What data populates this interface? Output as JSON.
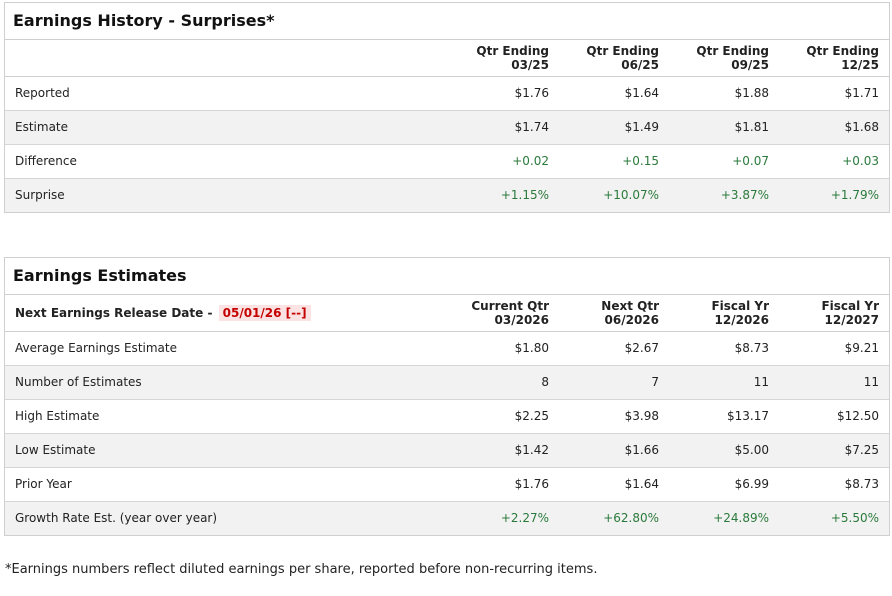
{
  "history": {
    "title": "Earnings History - Surprises*",
    "headers": [
      {
        "line1": "Qtr Ending",
        "line2": "03/25"
      },
      {
        "line1": "Qtr Ending",
        "line2": "06/25"
      },
      {
        "line1": "Qtr Ending",
        "line2": "09/25"
      },
      {
        "line1": "Qtr Ending",
        "line2": "12/25"
      }
    ],
    "rows": [
      {
        "label": "Reported",
        "values": [
          "$1.76",
          "$1.64",
          "$1.88",
          "$1.71"
        ]
      },
      {
        "label": "Estimate",
        "values": [
          "$1.74",
          "$1.49",
          "$1.81",
          "$1.68"
        ]
      },
      {
        "label": "Difference",
        "values": [
          "+0.02",
          "+0.15",
          "+0.07",
          "+0.03"
        ]
      },
      {
        "label": "Surprise",
        "values": [
          "+1.15%",
          "+10.07%",
          "+3.87%",
          "+1.79%"
        ]
      }
    ]
  },
  "estimates": {
    "title": "Earnings Estimates",
    "release_label": "Next Earnings Release Date -",
    "release_date": "05/01/26 [--]",
    "headers": [
      {
        "line1": "Current Qtr",
        "line2": "03/2026"
      },
      {
        "line1": "Next Qtr",
        "line2": "06/2026"
      },
      {
        "line1": "Fiscal Yr",
        "line2": "12/2026"
      },
      {
        "line1": "Fiscal Yr",
        "line2": "12/2027"
      }
    ],
    "rows": [
      {
        "label": "Average Earnings Estimate",
        "values": [
          "$1.80",
          "$2.67",
          "$8.73",
          "$9.21"
        ]
      },
      {
        "label": "Number of Estimates",
        "values": [
          "8",
          "7",
          "11",
          "11"
        ]
      },
      {
        "label": "High Estimate",
        "values": [
          "$2.25",
          "$3.98",
          "$13.17",
          "$12.50"
        ]
      },
      {
        "label": "Low Estimate",
        "values": [
          "$1.42",
          "$1.66",
          "$5.00",
          "$7.25"
        ]
      },
      {
        "label": "Prior Year",
        "values": [
          "$1.76",
          "$1.64",
          "$6.99",
          "$8.73"
        ]
      },
      {
        "label": "Growth Rate Est. (year over year)",
        "values": [
          "+2.27%",
          "+62.80%",
          "+24.89%",
          "+5.50%"
        ]
      }
    ]
  },
  "footnote": "*Earnings numbers reflect diluted earnings per share, reported before non-recurring items.",
  "colors": {
    "positive": "#2a7a3b",
    "badge_text": "#c40000",
    "badge_bg": "#fbe3e3"
  }
}
